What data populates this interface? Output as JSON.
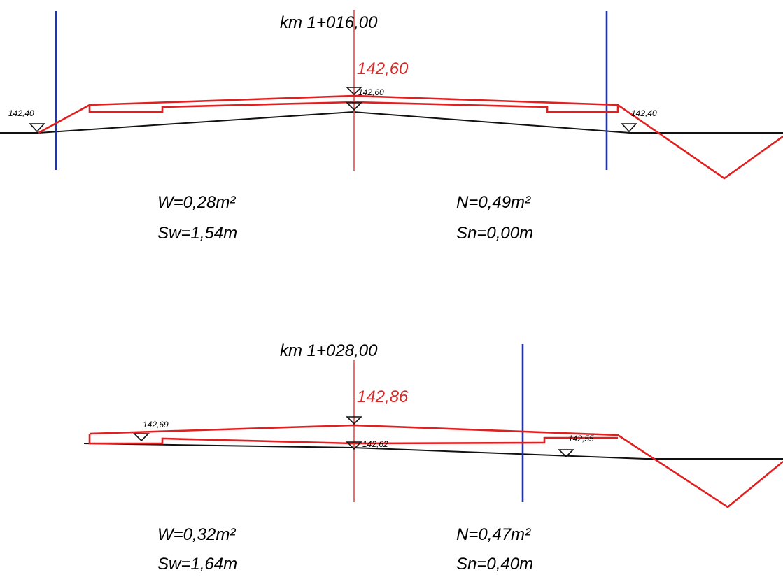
{
  "sections": [
    {
      "station": "km 1+016,00",
      "design_elevation": "142,60",
      "axis_elevation": "142,60",
      "left_elevation": "142,40",
      "right_elevation": "142,40",
      "W": "W=0,28m²",
      "Sw": "Sw=1,54m",
      "N": "N=0,49m²",
      "Sn": "Sn=0,00m"
    },
    {
      "station": "km 1+028,00",
      "design_elevation": "142,86",
      "axis_elevation": "142,62",
      "left_elevation": "142,69",
      "right_elevation": "142,55",
      "W": "W=0,32m²",
      "Sw": "Sw=1,64m",
      "N": "N=0,47m²",
      "Sn": "Sn=0,40m"
    }
  ],
  "colors": {
    "design": "#e02020",
    "limit": "#2034b0",
    "ground": "#111111",
    "axis": "#e84a4a"
  }
}
